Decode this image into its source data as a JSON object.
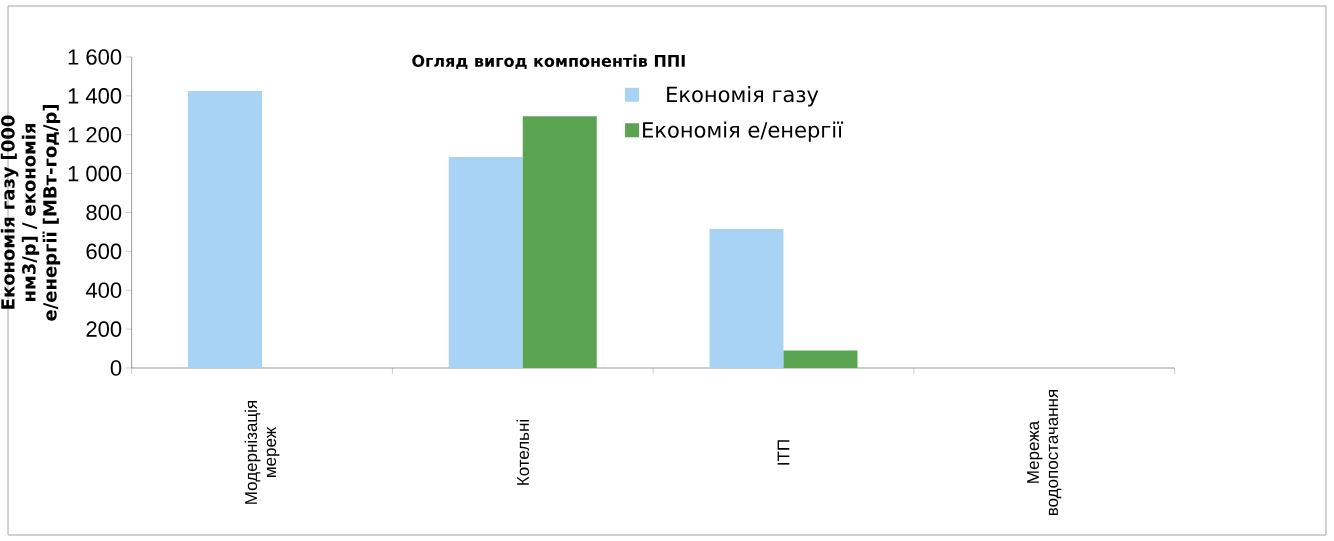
{
  "chart_data": {
    "type": "bar",
    "title": "Огляд вигод компонентів ППІ",
    "ylabel": "Економія газу [000 нм3/р] / економія е/енергії [МВт-год/р]",
    "categories": [
      "Модернізація мереж",
      "Котельні",
      "ІТП",
      "Мережа водопостачання"
    ],
    "series": [
      {
        "name": "Економія газу",
        "color": "#a9d3f5",
        "values": [
          1425,
          1085,
          715,
          0
        ]
      },
      {
        "name": "Економія е/енергії",
        "color": "#5ba552",
        "values": [
          0,
          1295,
          90,
          0
        ]
      }
    ],
    "ylim": [
      0,
      1600
    ],
    "yticks": [
      0,
      200,
      400,
      600,
      800,
      {
        "value": 1000,
        "label": "1 000"
      },
      {
        "value": 1200,
        "label": "1 200"
      },
      {
        "value": 1400,
        "label": "1 400"
      },
      {
        "value": 1600,
        "label": "1 600"
      }
    ],
    "grid": false,
    "legend": "top"
  }
}
